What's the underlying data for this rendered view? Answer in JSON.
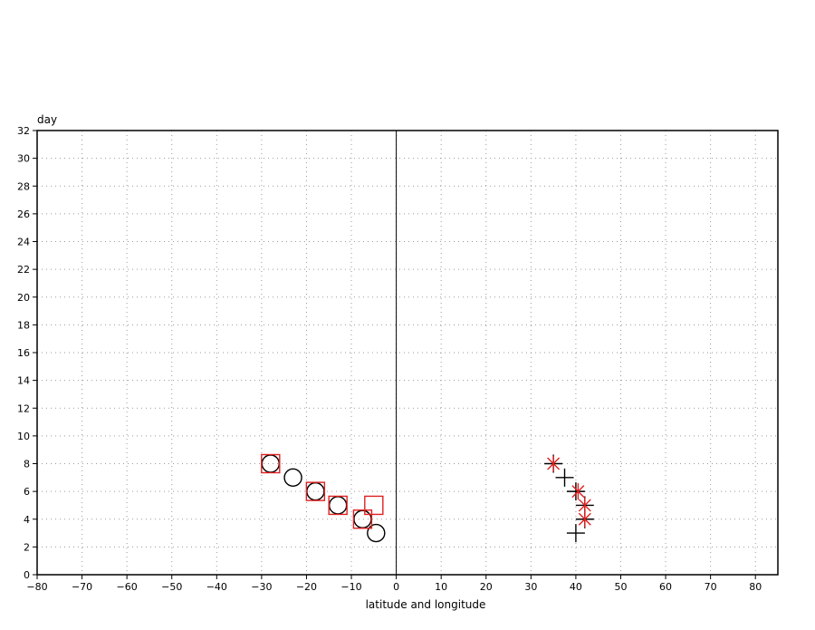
{
  "chart_data": {
    "type": "scatter",
    "title": "",
    "xlabel": "latitude and longitude",
    "ylabel": "day",
    "xlim": [
      -80,
      85
    ],
    "ylim": [
      0,
      32
    ],
    "xticks": [
      -80,
      -70,
      -60,
      -50,
      -40,
      -30,
      -20,
      -10,
      0,
      10,
      20,
      30,
      40,
      50,
      60,
      70,
      80
    ],
    "yticks": [
      0,
      2,
      4,
      6,
      8,
      10,
      12,
      14,
      16,
      18,
      20,
      22,
      24,
      26,
      28,
      30,
      32
    ],
    "grid": true,
    "zero_line_x": 0,
    "series": [
      {
        "marker": "circle",
        "color": "#000000",
        "points": [
          [
            -28,
            8
          ],
          [
            -23,
            7
          ],
          [
            -18,
            6
          ],
          [
            -13,
            5
          ],
          [
            -7.5,
            4
          ],
          [
            -4.5,
            3
          ]
        ]
      },
      {
        "marker": "square",
        "color": "#e02020",
        "points": [
          [
            -28,
            8
          ],
          [
            -18,
            6
          ],
          [
            -13,
            5
          ],
          [
            -7.5,
            4
          ],
          [
            -5,
            5
          ]
        ]
      },
      {
        "marker": "plus",
        "color": "#000000",
        "points": [
          [
            35,
            8
          ],
          [
            37.5,
            7
          ],
          [
            40,
            6
          ],
          [
            42,
            5
          ],
          [
            42,
            4
          ],
          [
            40,
            3
          ]
        ]
      },
      {
        "marker": "asterisk",
        "color": "#e02020",
        "points": [
          [
            35,
            8
          ],
          [
            40.5,
            6
          ],
          [
            42,
            5
          ],
          [
            42,
            4
          ]
        ]
      }
    ]
  }
}
